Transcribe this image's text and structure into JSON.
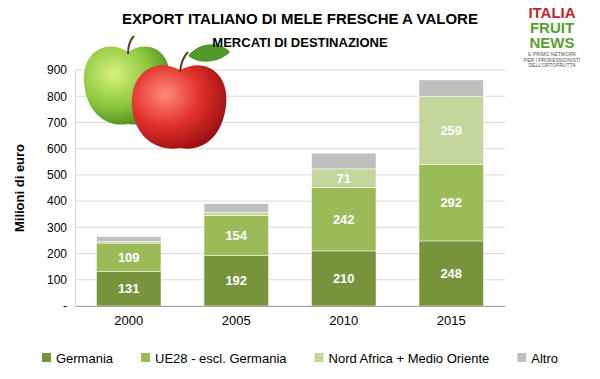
{
  "chart_data": {
    "type": "bar",
    "stacked": true,
    "title": "EXPORT ITALIANO DI MELE FRESCHE A VALORE",
    "subtitle": "MERCATI DI DESTINAZIONE",
    "y_label": "Milioni di euro",
    "logo": {
      "lines": [
        "ITALIA",
        "FRUIT",
        "NEWS"
      ],
      "tagline": [
        "IL PRIMO NETWORK",
        "PER I PROFESSIONISTI",
        "DELL'ORTOFRUTTA"
      ]
    },
    "categories": [
      "2000",
      "2005",
      "2010",
      "2015"
    ],
    "series": [
      {
        "name": "Germania",
        "color": "#77933c",
        "values": [
          131,
          192,
          210,
          248
        ]
      },
      {
        "name": "UE28 - escl. Germania",
        "color": "#9bbb59",
        "values": [
          109,
          154,
          242,
          292
        ]
      },
      {
        "name": "Nord Africa + Medio Oriente",
        "color": "#c3d69b",
        "values": [
          5,
          12,
          71,
          259
        ],
        "value_labels": [
          null,
          null,
          "71",
          "259"
        ]
      },
      {
        "name": "Altro",
        "color": "#bfbfbf",
        "values": [
          20,
          32,
          60,
          63
        ],
        "value_labels": [
          null,
          null,
          null,
          null
        ]
      }
    ],
    "ylim": [
      0,
      900
    ],
    "yticks": [
      {
        "value": 0,
        "label": "-"
      },
      100,
      200,
      300,
      400,
      500,
      600,
      700,
      800,
      900
    ],
    "grid": true,
    "legend": "bottom",
    "data_labels": true
  }
}
